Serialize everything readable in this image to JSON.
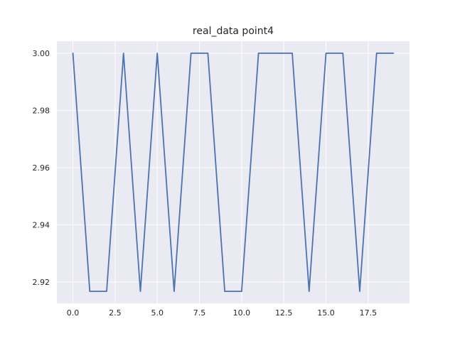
{
  "chart_data": {
    "type": "line",
    "title": "real_data point4",
    "xlabel": "",
    "ylabel": "",
    "xlim": [
      -0.95,
      19.95
    ],
    "ylim": [
      2.9125,
      3.0042
    ],
    "x_ticks": [
      0.0,
      2.5,
      5.0,
      7.5,
      10.0,
      12.5,
      15.0,
      17.5
    ],
    "x_tick_labels": [
      "0.0",
      "2.5",
      "5.0",
      "7.5",
      "10.0",
      "12.5",
      "15.0",
      "17.5"
    ],
    "y_ticks": [
      2.92,
      2.94,
      2.96,
      2.98,
      3.0
    ],
    "y_tick_labels": [
      "2.92",
      "2.94",
      "2.96",
      "2.98",
      "3.00"
    ],
    "grid": true,
    "series": [
      {
        "color": "#4c72b0",
        "x": [
          0,
          1,
          2,
          3,
          4,
          5,
          6,
          7,
          8,
          9,
          10,
          11,
          12,
          13,
          14,
          15,
          16,
          17,
          18,
          19
        ],
        "values": [
          3.0,
          2.9167,
          2.9167,
          3.0,
          2.9167,
          3.0,
          2.9167,
          3.0,
          3.0,
          2.9167,
          2.9167,
          3.0,
          3.0,
          3.0,
          2.9167,
          3.0,
          3.0,
          2.9167,
          3.0,
          3.0
        ]
      }
    ],
    "colors": {
      "plot_background": "#eaeaf2",
      "grid": "#ffffff",
      "text": "#262626"
    }
  }
}
